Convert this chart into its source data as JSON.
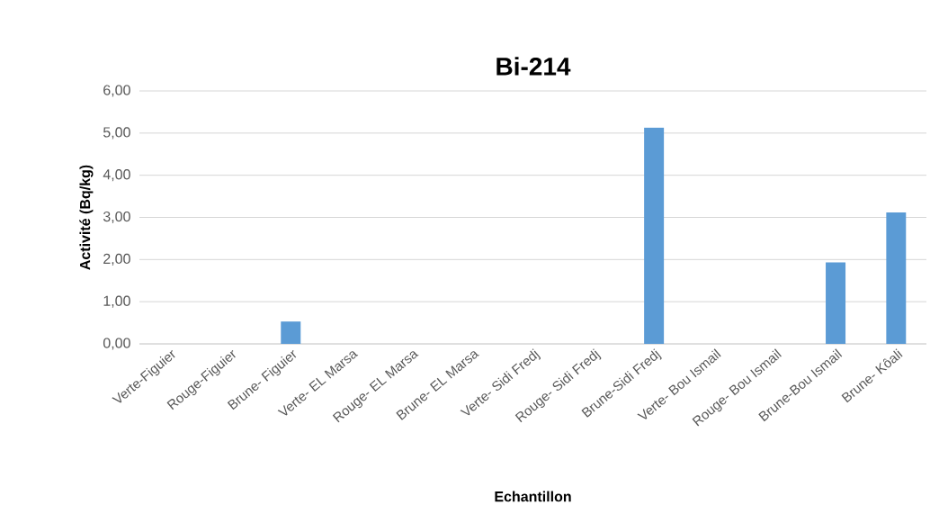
{
  "chart_data": {
    "type": "bar",
    "title": "Bi-214",
    "xlabel": "Echantillon",
    "ylabel": "Activité (Bq/kg)",
    "categories": [
      "Verte-Figuier",
      "Rouge-Figuier",
      "Brune- Figuier",
      "Verte- EL Marsa",
      "Rouge- EL Marsa",
      "Brune- EL Marsa",
      "Verte- Sidi Fredj",
      "Rouge- Sidi Fredj",
      "Brune-Sidi Fredj",
      "Verte- Bou Ismail",
      "Rouge- Bou Ismail",
      "Brune-Bou Ismail",
      "Brune- Kôali"
    ],
    "values": [
      0,
      0,
      0.53,
      0,
      0,
      0,
      0,
      0,
      5.13,
      0,
      0,
      1.93,
      3.12
    ],
    "color": "#5b9bd5",
    "ylim": [
      0,
      6
    ],
    "yticks": [
      {
        "value": 0,
        "label": "0,00"
      },
      {
        "value": 1,
        "label": "1,00"
      },
      {
        "value": 2,
        "label": "2,00"
      },
      {
        "value": 3,
        "label": "3,00"
      },
      {
        "value": 4,
        "label": "4,00"
      },
      {
        "value": 5,
        "label": "5,00"
      },
      {
        "value": 6,
        "label": "6,00"
      }
    ],
    "grid": "y"
  }
}
